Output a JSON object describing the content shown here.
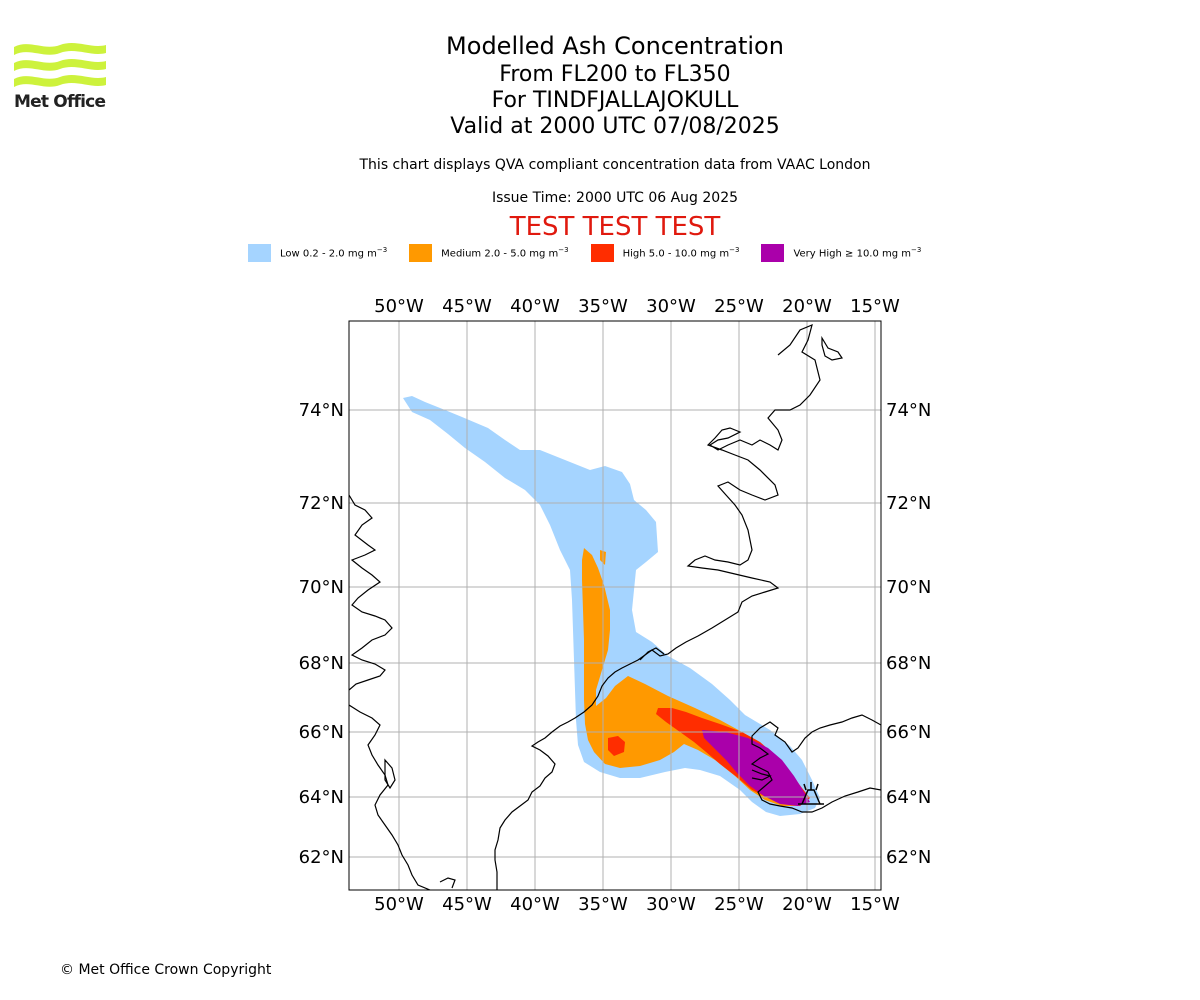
{
  "header": {
    "title": "Modelled Ash Concentration",
    "levels": "From FL200 to FL350",
    "volcano": "For TINDFJALLAJOKULL",
    "valid": "Valid at 2000 UTC 07/08/2025",
    "subtitle": "This chart displays QVA compliant concentration data from VAAC London",
    "issue": "Issue Time: 2000 UTC 06 Aug 2025",
    "banner": "TEST TEST TEST"
  },
  "logo": {
    "text": "Met Office",
    "color": "#cdf23c"
  },
  "legend": [
    {
      "label": "Low 0.2 - 2.0 mg m",
      "sup": "−3",
      "color": "#a5d4ff"
    },
    {
      "label": "Medium 2.0 - 5.0 mg m",
      "sup": "−3",
      "color": "#ff9900"
    },
    {
      "label": "High 5.0 - 10.0 mg m",
      "sup": "−3",
      "color": "#ff2d00"
    },
    {
      "label": "Very High ≥ 10.0 mg m",
      "sup": "−3",
      "color": "#aa00aa"
    }
  ],
  "map": {
    "lon_labels": [
      "50°W",
      "45°W",
      "40°W",
      "35°W",
      "30°W",
      "25°W",
      "20°W",
      "15°W"
    ],
    "lat_labels": [
      "74°N",
      "72°N",
      "70°N",
      "68°N",
      "66°N",
      "64°N",
      "62°N"
    ],
    "volcano_icon": "volcano-icon"
  },
  "footer": {
    "copyright": "© Met Office Crown Copyright"
  }
}
